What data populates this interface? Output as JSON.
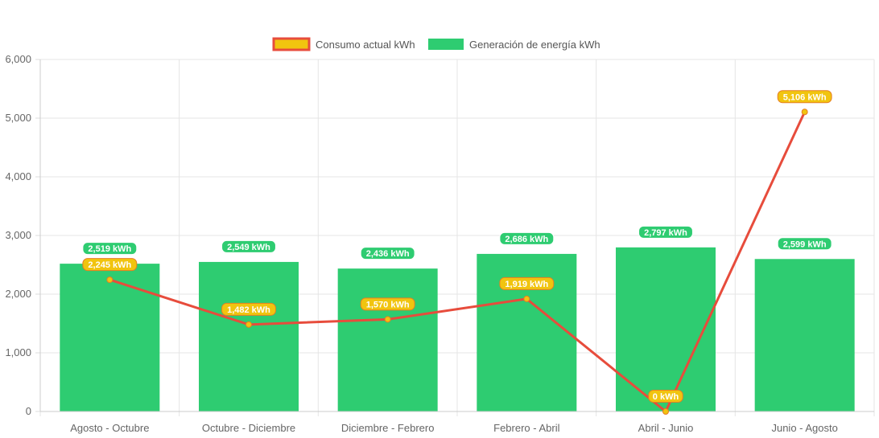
{
  "chart_data": {
    "type": "bar",
    "categories": [
      "Agosto - Octubre",
      "Octubre - Diciembre",
      "Diciembre - Febrero",
      "Febrero - Abril",
      "Abril - Junio",
      "Junio - Agosto"
    ],
    "series": [
      {
        "name": "Consumo actual kWh",
        "type": "line",
        "values": [
          2245,
          1482,
          1570,
          1919,
          0,
          5106
        ],
        "labels": [
          "2,245 kWh",
          "1,482 kWh",
          "1,570 kWh",
          "1,919 kWh",
          "0 kWh",
          "5,106 kWh"
        ],
        "color": "#e74c3c",
        "fill_color": "#f1c40f"
      },
      {
        "name": "Generación de energía kWh",
        "type": "bar",
        "values": [
          2519,
          2549,
          2436,
          2686,
          2797,
          2599
        ],
        "labels": [
          "2,519 kWh",
          "2,549 kWh",
          "2,436 kWh",
          "2,686 kWh",
          "2,797 kWh",
          "2,599 kWh"
        ],
        "color": "#2ecc71"
      }
    ],
    "ylim": [
      0,
      6000
    ],
    "yticks": [
      0,
      1000,
      2000,
      3000,
      4000,
      5000,
      6000
    ],
    "ytick_labels": [
      "0",
      "1,000",
      "2,000",
      "3,000",
      "4,000",
      "5,000",
      "6,000"
    ],
    "grid": true,
    "legend_position": "top-center"
  }
}
